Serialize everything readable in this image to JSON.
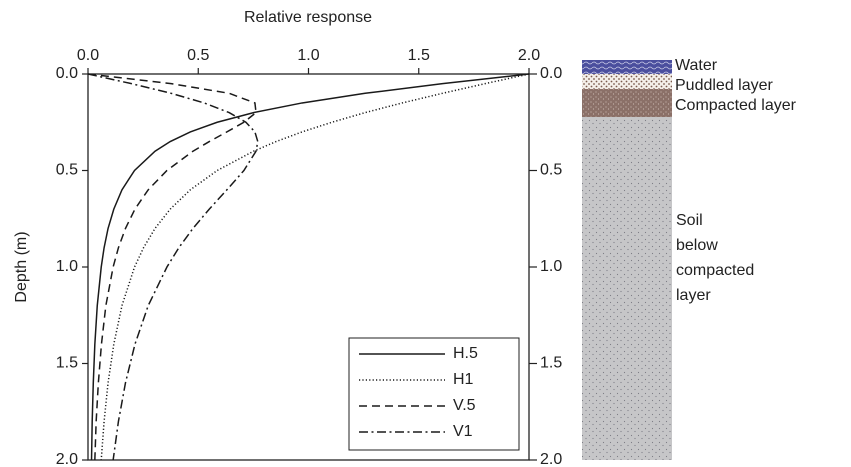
{
  "chart_data": {
    "type": "line",
    "title": "Relative response",
    "y_label": "Depth (m)",
    "y": [
      0,
      0.05,
      0.1,
      0.15,
      0.2,
      0.25,
      0.3,
      0.35,
      0.4,
      0.5,
      0.6,
      0.7,
      0.8,
      0.9,
      1.0,
      1.2,
      1.4,
      1.6,
      1.8,
      2.0
    ],
    "series": [
      {
        "name": "H.5",
        "color": "#1a1a1a",
        "style": "solid",
        "values": [
          2,
          1.608,
          1.257,
          0.971,
          0.751,
          0.586,
          0.464,
          0.373,
          0.304,
          0.211,
          0.154,
          0.117,
          0.091,
          0.073,
          0.06,
          0.042,
          0.031,
          0.024,
          0.019,
          0.016
        ]
      },
      {
        "name": "H1",
        "color": "#1a1a1a",
        "style": "dotted",
        "values": [
          2,
          1.801,
          1.608,
          1.425,
          1.257,
          1.106,
          0.971,
          0.853,
          0.751,
          0.586,
          0.464,
          0.373,
          0.304,
          0.252,
          0.211,
          0.154,
          0.117,
          0.091,
          0.073,
          0.06
        ]
      },
      {
        "name": "V.5",
        "color": "#1a1a1a",
        "style": "dashed",
        "values": [
          0,
          0.377,
          0.64,
          0.757,
          0.762,
          0.707,
          0.63,
          0.55,
          0.476,
          0.358,
          0.273,
          0.213,
          0.17,
          0.138,
          0.114,
          0.081,
          0.061,
          0.047,
          0.037,
          0.031
        ]
      },
      {
        "name": "V1",
        "color": "#1a1a1a",
        "style": "dashdot",
        "values": [
          0,
          0.197,
          0.377,
          0.527,
          0.64,
          0.716,
          0.757,
          0.77,
          0.762,
          0.707,
          0.63,
          0.55,
          0.476,
          0.412,
          0.358,
          0.273,
          0.213,
          0.17,
          0.138,
          0.114
        ]
      }
    ],
    "xlim": [
      0,
      2
    ],
    "xticks": [
      {
        "value": 0,
        "label": "0.0"
      },
      0.5,
      {
        "value": 1,
        "label": "1.0"
      },
      1.5,
      {
        "value": 2,
        "label": "2.0"
      }
    ],
    "ylim": [
      0,
      2
    ],
    "y_inverted": true,
    "yticks": [
      {
        "value": 0,
        "label": "0.0"
      },
      0.5,
      {
        "value": 1,
        "label": "1.0"
      },
      1.5,
      {
        "value": 2,
        "label": "2.0"
      }
    ],
    "y2lim": [
      0,
      2
    ],
    "y2ticks": [
      {
        "value": 0,
        "label": "0.0"
      },
      0.5,
      {
        "value": 1,
        "label": "1.0"
      },
      1.5,
      {
        "value": 2,
        "label": "2.0"
      }
    ],
    "legend": "lower right"
  },
  "soil_column": {
    "layers": [
      {
        "label": "Water"
      },
      {
        "label": "Puddled layer"
      },
      {
        "label": "Compacted layer"
      },
      {
        "lines": [
          "Soil",
          "below",
          "compacted",
          "layer"
        ]
      }
    ]
  }
}
